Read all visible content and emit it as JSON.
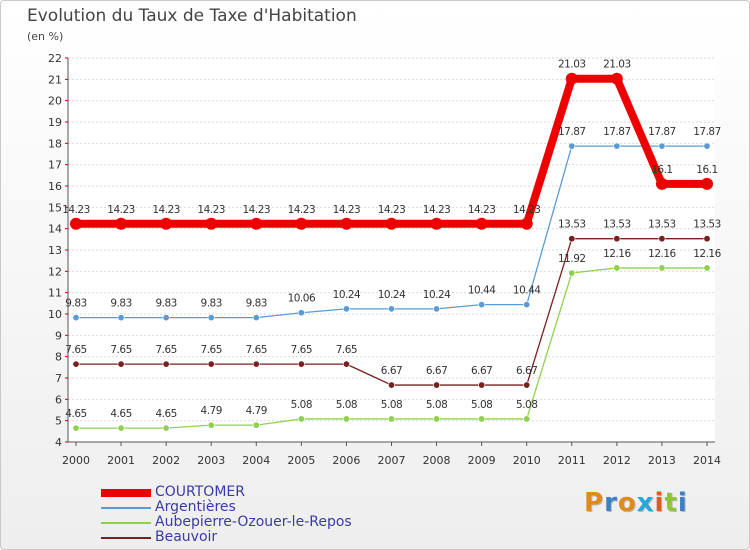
{
  "title": "Evolution du Taux de Taxe d'Habitation",
  "subtitle": "(en %)",
  "logo_text": "Proxiti",
  "chart_data": {
    "type": "line",
    "title": "Evolution du Taux de Taxe d'Habitation",
    "subtitle": "(en %)",
    "xlabel": "",
    "ylabel": "",
    "x": [
      "2000",
      "2001",
      "2002",
      "2003",
      "2004",
      "2005",
      "2006",
      "2007",
      "2008",
      "2009",
      "2010",
      "2011",
      "2012",
      "2013",
      "2014"
    ],
    "ylim": [
      4,
      22
    ],
    "yticks": [
      4,
      5,
      6,
      7,
      8,
      9,
      10,
      11,
      12,
      13,
      14,
      15,
      16,
      17,
      18,
      19,
      20,
      21,
      22
    ],
    "grid": "horizontal",
    "legend_position": "bottom-left",
    "series": [
      {
        "name": "Argentières",
        "color": "#5b9bd5",
        "values": [
          9.83,
          9.83,
          9.83,
          9.83,
          9.83,
          10.06,
          10.24,
          10.24,
          10.24,
          10.44,
          10.44,
          17.87,
          17.87,
          17.87,
          17.87
        ],
        "labels": [
          "9.83",
          "9.83",
          "9.83",
          "9.83",
          "9.83",
          "10.06",
          "10.24",
          "10.24",
          "10.24",
          "10.44",
          "10.44",
          "17.87",
          "17.87",
          "17.87",
          "17.87"
        ]
      },
      {
        "name": "Aubepierre-Ozouer-le-Repos",
        "color": "#8fd14f",
        "values": [
          4.65,
          4.65,
          4.65,
          4.79,
          4.79,
          5.08,
          5.08,
          5.08,
          5.08,
          5.08,
          5.08,
          11.92,
          12.16,
          12.16,
          12.16
        ],
        "labels": [
          "4.65",
          "4.65",
          "4.65",
          "4.79",
          "4.79",
          "5.08",
          "5.08",
          "5.08",
          "5.08",
          "5.08",
          "5.08",
          "11.92",
          "12.16",
          "12.16",
          "12.16"
        ]
      },
      {
        "name": "Beauvoir",
        "color": "#7a1f1f",
        "values": [
          7.65,
          7.65,
          7.65,
          7.65,
          7.65,
          7.65,
          7.65,
          6.67,
          6.67,
          6.67,
          6.67,
          13.53,
          13.53,
          13.53,
          13.53
        ],
        "labels": [
          "7.65",
          "7.65",
          "7.65",
          "7.65",
          "7.65",
          "7.65",
          "7.65",
          "6.67",
          "6.67",
          "6.67",
          "6.67",
          "13.53",
          "13.53",
          "13.53",
          "13.53"
        ]
      },
      {
        "name": "COURTOMER",
        "color": "#ee0000",
        "values": [
          14.23,
          14.23,
          14.23,
          14.23,
          14.23,
          14.23,
          14.23,
          14.23,
          14.23,
          14.23,
          14.23,
          21.03,
          21.03,
          16.1,
          16.1
        ],
        "labels": [
          "14.23",
          "14.23",
          "14.23",
          "14.23",
          "14.23",
          "14.23",
          "14.23",
          "14.23",
          "14.23",
          "14.23",
          "14.23",
          "21.03",
          "21.03",
          "16.1",
          "16.1"
        ]
      }
    ],
    "legend": [
      "COURTOMER",
      "Argentières",
      "Aubepierre-Ozouer-le-Repos",
      "Beauvoir"
    ]
  }
}
